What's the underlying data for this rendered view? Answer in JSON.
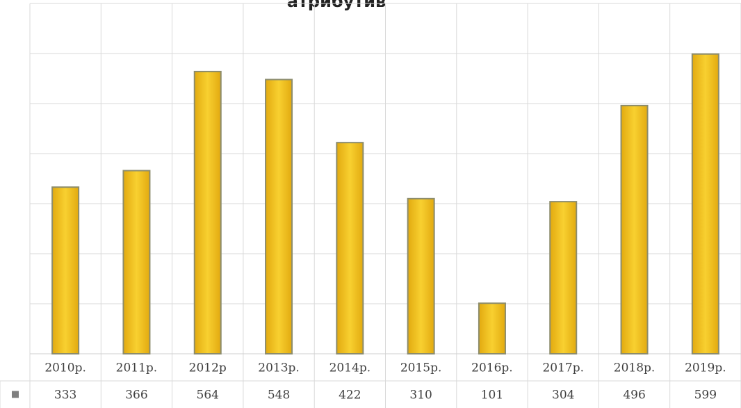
{
  "chart_data": {
    "type": "bar",
    "title": "атрибутив",
    "categories": [
      "2010р.",
      "2011р.",
      "2012р",
      "2013р.",
      "2014р.",
      "2015р.",
      "2016р.",
      "2017р.",
      "2018р.",
      "2019р."
    ],
    "series": [
      {
        "values": [
          333,
          366,
          564,
          548,
          422,
          310,
          101,
          304,
          496,
          599
        ]
      }
    ],
    "ylim": [
      0,
      700
    ],
    "grid": true,
    "data_table": true,
    "legend_key_color": "#7f7f7f",
    "bar_color": "#f2c01e",
    "bar_border_color": "#8c8c6c"
  }
}
